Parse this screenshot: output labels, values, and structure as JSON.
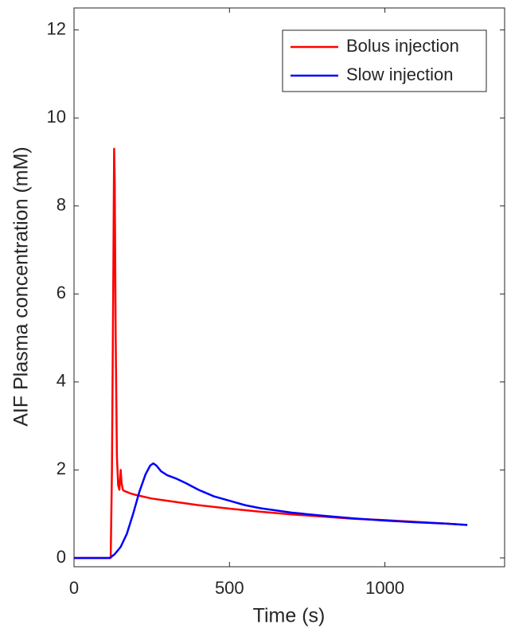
{
  "chart_data": {
    "type": "line",
    "xlabel": "Time (s)",
    "ylabel": "AIF Plasma concentration (mM)",
    "xlim": [
      0,
      1385
    ],
    "ylim": [
      -0.2,
      12.5
    ],
    "xticks": [
      0,
      500,
      1000
    ],
    "yticks": [
      0,
      2,
      4,
      6,
      8,
      10,
      12
    ],
    "legend": "upper right",
    "series": [
      {
        "name": "Bolus injection",
        "color": "#ff0000",
        "x": [
          0,
          118,
          122,
          126,
          129,
          131,
          134,
          138,
          142,
          146,
          150,
          153,
          157,
          162,
          170,
          180,
          200,
          250,
          300,
          400,
          500,
          600,
          700,
          800,
          900,
          1000,
          1100,
          1200,
          1265
        ],
        "values": [
          0,
          0,
          2.0,
          6.0,
          9.3,
          8.5,
          5.0,
          2.3,
          1.65,
          1.55,
          2.0,
          1.7,
          1.55,
          1.52,
          1.5,
          1.47,
          1.43,
          1.35,
          1.3,
          1.2,
          1.12,
          1.05,
          0.99,
          0.94,
          0.89,
          0.86,
          0.82,
          0.78,
          0.75
        ]
      },
      {
        "name": "Slow injection",
        "color": "#0000ff",
        "x": [
          0,
          115,
          130,
          150,
          170,
          190,
          210,
          230,
          245,
          255,
          265,
          280,
          300,
          330,
          360,
          400,
          450,
          500,
          550,
          600,
          700,
          800,
          900,
          1000,
          1100,
          1200,
          1265
        ],
        "values": [
          0,
          0,
          0.08,
          0.25,
          0.55,
          1.0,
          1.5,
          1.9,
          2.1,
          2.15,
          2.1,
          1.97,
          1.88,
          1.8,
          1.7,
          1.55,
          1.4,
          1.3,
          1.2,
          1.13,
          1.03,
          0.96,
          0.9,
          0.85,
          0.81,
          0.78,
          0.75
        ]
      }
    ]
  }
}
